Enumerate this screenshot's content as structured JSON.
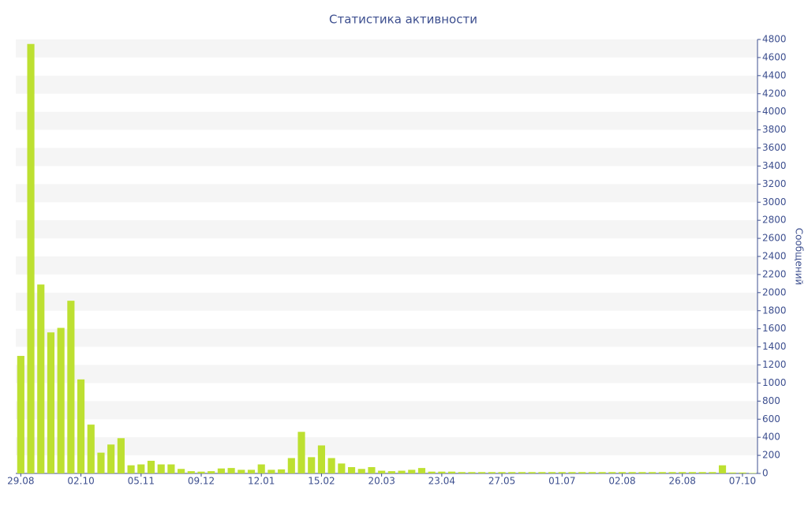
{
  "chart_data": {
    "type": "bar",
    "title": "Статистика активности",
    "y_label": "Сообщений",
    "categories": [
      "29.08",
      null,
      null,
      null,
      null,
      null,
      "02.10",
      null,
      null,
      null,
      null,
      null,
      "05.11",
      null,
      null,
      null,
      null,
      null,
      "09.12",
      null,
      null,
      null,
      null,
      null,
      "12.01",
      null,
      null,
      null,
      null,
      null,
      "15.02",
      null,
      null,
      null,
      null,
      null,
      "20.03",
      null,
      null,
      null,
      null,
      null,
      "23.04",
      null,
      null,
      null,
      null,
      null,
      "27.05",
      null,
      null,
      null,
      null,
      null,
      "01.07",
      null,
      null,
      null,
      null,
      null,
      "02.08",
      null,
      null,
      null,
      null,
      null,
      "26.08",
      null,
      null,
      null,
      null,
      null,
      "07.10",
      null
    ],
    "values": [
      1300,
      4750,
      2090,
      1560,
      1610,
      1910,
      1040,
      540,
      230,
      320,
      390,
      90,
      100,
      140,
      100,
      100,
      50,
      25,
      20,
      25,
      55,
      60,
      40,
      40,
      100,
      40,
      45,
      170,
      460,
      180,
      310,
      170,
      110,
      70,
      50,
      70,
      30,
      25,
      30,
      40,
      60,
      20,
      20,
      20,
      15,
      15,
      15,
      15,
      15,
      15,
      15,
      15,
      15,
      15,
      15,
      15,
      15,
      15,
      15,
      15,
      15,
      15,
      15,
      15,
      15,
      15,
      15,
      15,
      15,
      15,
      90,
      10,
      10,
      5
    ],
    "color": "#bde031",
    "ylim": [
      0,
      4800
    ],
    "yticks": [
      0,
      200,
      400,
      600,
      800,
      1000,
      1200,
      1400,
      1600,
      1800,
      2000,
      2200,
      2400,
      2600,
      2800,
      3000,
      3200,
      3400,
      3600,
      3800,
      4000,
      4200,
      4400,
      4600,
      4800
    ],
    "grid": true
  }
}
